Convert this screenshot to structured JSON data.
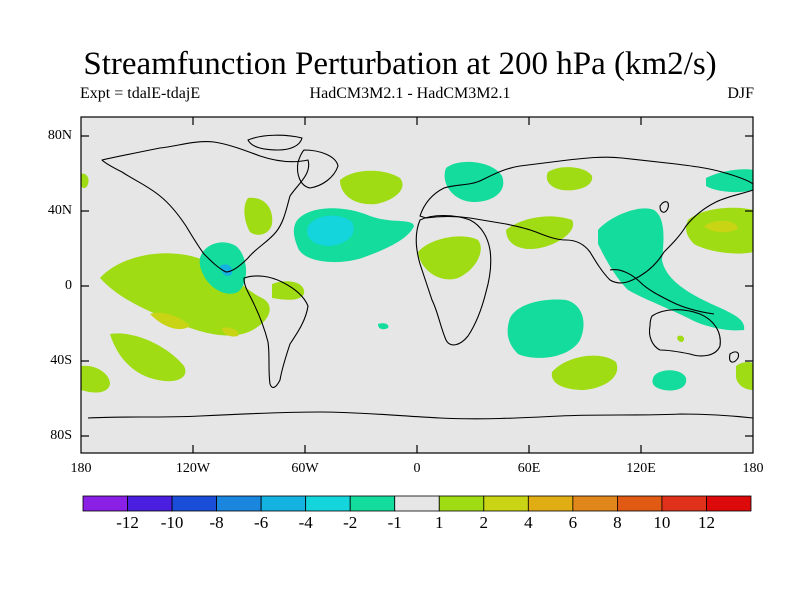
{
  "title": "Streamfunction Perturbation at 200 hPa (km2/s)",
  "subtitle_left": "Expt = tdalE-tdajE",
  "subtitle_center": "HadCM3M2.1 - HadCM3M2.1",
  "subtitle_right": "DJF",
  "lat_labels": [
    "80N",
    "40N",
    "0",
    "40S",
    "80S"
  ],
  "lon_labels": [
    "180",
    "120W",
    "60W",
    "0",
    "60E",
    "120E",
    "180"
  ],
  "colorbar": {
    "labels": [
      "-12",
      "-10",
      "-8",
      "-6",
      "-4",
      "-2",
      "-1",
      "1",
      "2",
      "4",
      "6",
      "8",
      "10",
      "12"
    ],
    "colors": [
      "#8a1fe6",
      "#4a1fe0",
      "#1a4ed8",
      "#1a86de",
      "#14b2e0",
      "#14d4dc",
      "#14dc9c",
      "#e6e6e6",
      "#a0dc14",
      "#c8d414",
      "#e0ae14",
      "#e0861a",
      "#e05a14",
      "#e0321a",
      "#dc0a0a"
    ]
  },
  "colors": {
    "ocean": "#e6e6e6",
    "neg1": "#14dc9c",
    "neg2": "#14d4dc",
    "neg4": "#14b2e0",
    "pos1": "#a0dc14",
    "pos2": "#c8d414",
    "pos4": "#e0ae14"
  }
}
